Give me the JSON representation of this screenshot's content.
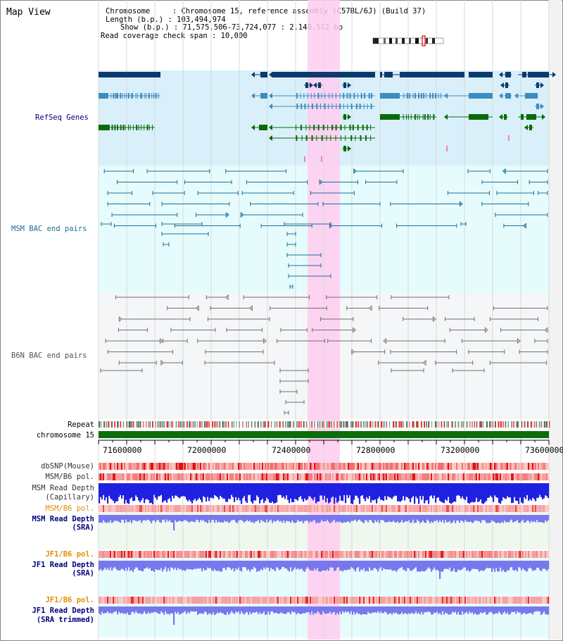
{
  "title": "Map View",
  "header": {
    "chromosome_line": "Chromosome     : Chromosome 15, reference assembly (C57BL/6J) (Build 37)",
    "length_line": "Length (b.p.) : 103,494,974",
    "show_line": "Show (b.p.) : 71,575,506-73,724,077 : 2,148,572 bp",
    "span_line": "Read coverage check span : 10,000"
  },
  "tracks": {
    "refseq": "RefSeq Genes",
    "msm_bac": "MSM BAC end pairs",
    "b6n_bac": "B6N BAC end pairs",
    "repeat": "Repeat",
    "chromosome": "chromosome 15",
    "dbsnp": "dbSNP(Mouse)",
    "msm_b6_pol_1": "MSM/B6 pol.",
    "msm_read_depth_cap_1": "MSM Read Depth",
    "msm_read_depth_cap_2": "(Capillary)",
    "msm_b6_pol_2": "MSM/B6 pol.",
    "msm_read_depth_sra_1": "MSM Read Depth",
    "msm_read_depth_sra_2": "(SRA)",
    "jf1_b6_pol_1": "JF1/B6 pol.",
    "jf1_read_depth_sra_1": "JF1 Read Depth",
    "jf1_read_depth_sra_2": "(SRA)",
    "jf1_b6_pol_2": "JF1/B6 pol.",
    "jf1_read_depth_trim_1": "JF1 Read Depth",
    "jf1_read_depth_trim_2": "(SRA trimmed)"
  },
  "ruler": {
    "ticks": [
      "71600000",
      "72000000",
      "72400000",
      "72800000",
      "73200000",
      "73600000"
    ]
  },
  "colors": {
    "refseq_bg": "#d9f0fa",
    "msm_bg": "#e6fcfc",
    "b6n_bg": "#f5f6f8",
    "highlight": "#ffcdf0",
    "gene_dark": "#0b3a6e",
    "gene_blue": "#3e8bbf",
    "gene_green": "#0a6a0a",
    "msm_pair": "#1e6e96",
    "b6n_pair": "#707070",
    "chromosome": "#0a6e0a",
    "depth_blue": "#2020e0",
    "depth_lavender": "#7878ee",
    "label_navy": "#000080",
    "label_teal": "#1e6e96",
    "label_orange": "#e09000"
  }
}
